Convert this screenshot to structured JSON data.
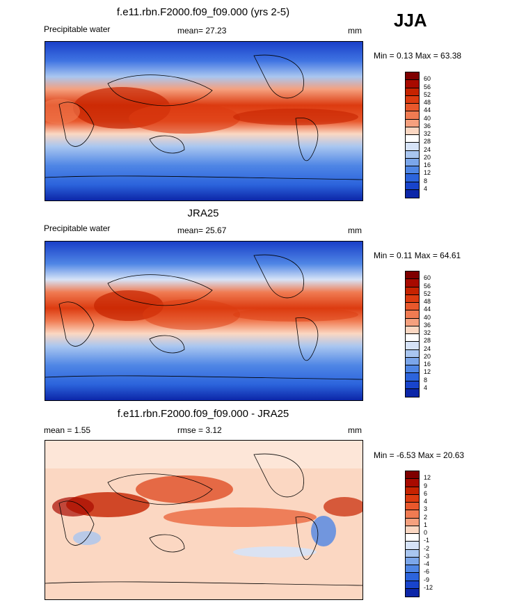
{
  "season": "JJA",
  "panels": [
    {
      "title": "f.e11.rbn.F2000.f09_f09.000 (yrs 2-5)",
      "left_label": "Precipitable water",
      "mean_label": "mean=  27.23",
      "units": "mm",
      "minmax": "Min =   0.13 Max =  63.38",
      "levels": [
        "60",
        "56",
        "52",
        "48",
        "44",
        "40",
        "36",
        "32",
        "28",
        "24",
        "20",
        "16",
        "12",
        "8",
        "4"
      ],
      "colors": [
        "#7f0000",
        "#a80a00",
        "#c62300",
        "#dc3b10",
        "#e8582c",
        "#f07b52",
        "#f5a07e",
        "#fbd7c2",
        "#ffffff",
        "#d6e3f7",
        "#a9c6f0",
        "#7ba6ea",
        "#4f86e5",
        "#2c64dc",
        "#1844cc",
        "#0c26a8"
      ]
    },
    {
      "title": "JRA25",
      "left_label": "Precipitable water",
      "mean_label": "mean=  25.67",
      "units": "mm",
      "minmax": "Min =   0.11 Max =  64.61",
      "levels": [
        "60",
        "56",
        "52",
        "48",
        "44",
        "40",
        "36",
        "32",
        "28",
        "24",
        "20",
        "16",
        "12",
        "8",
        "4"
      ],
      "colors": [
        "#7f0000",
        "#a80a00",
        "#c62300",
        "#dc3b10",
        "#e8582c",
        "#f07b52",
        "#f5a07e",
        "#fbd7c2",
        "#ffffff",
        "#d6e3f7",
        "#a9c6f0",
        "#7ba6ea",
        "#4f86e5",
        "#2c64dc",
        "#1844cc",
        "#0c26a8"
      ]
    },
    {
      "title": "f.e11.rbn.F2000.f09_f09.000 - JRA25",
      "left_label": "mean =   1.55",
      "mean_label": "rmse =   3.12",
      "units": "mm",
      "minmax": "Min =  -6.53 Max =  20.63",
      "levels": [
        "12",
        "9",
        "6",
        "4",
        "3",
        "2",
        "1",
        "0",
        "-1",
        "-2",
        "-3",
        "-4",
        "-6",
        "-9",
        "-12"
      ],
      "colors": [
        "#7f0000",
        "#a80a00",
        "#c62300",
        "#dc3b10",
        "#e8582c",
        "#f07b52",
        "#f5a07e",
        "#fbd7c2",
        "#ffffff",
        "#d6e3f7",
        "#a9c6f0",
        "#7ba6ea",
        "#4f86e5",
        "#2c64dc",
        "#1844cc",
        "#0c26a8"
      ]
    }
  ]
}
